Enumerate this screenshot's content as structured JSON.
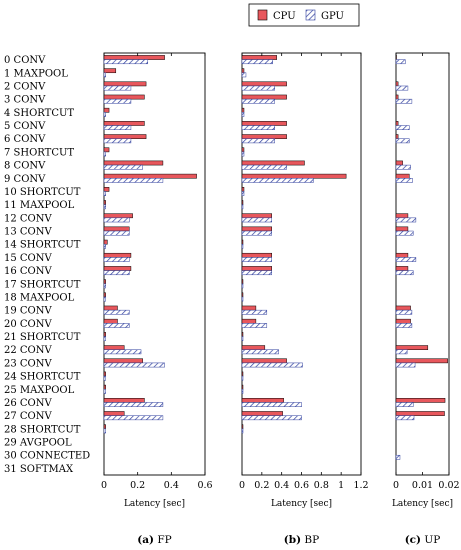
{
  "chart_data": [
    {
      "type": "bar",
      "panel_caption": "(a) FP",
      "caption_letter": "(a)",
      "caption_text": "FP",
      "xlabel": "Latency [sec]",
      "xlim": [
        0,
        0.6
      ],
      "xticks": [
        "0",
        "0.2",
        "0.4",
        "0.6"
      ],
      "xtick_values": [
        0,
        0.2,
        0.4,
        0.6
      ],
      "series": [
        {
          "name": "CPU",
          "values": [
            0.36,
            0.07,
            0.25,
            0.24,
            0.03,
            0.24,
            0.25,
            0.03,
            0.35,
            0.55,
            0.03,
            0.01,
            0.17,
            0.15,
            0.02,
            0.16,
            0.16,
            0.01,
            0.01,
            0.08,
            0.08,
            0.01,
            0.12,
            0.23,
            0.01,
            0.01,
            0.24,
            0.12,
            0.01,
            0.0,
            0.0,
            0.0
          ]
        },
        {
          "name": "GPU",
          "values": [
            0.26,
            0.01,
            0.16,
            0.16,
            0.01,
            0.16,
            0.16,
            0.01,
            0.23,
            0.35,
            0.01,
            0.01,
            0.15,
            0.15,
            0.01,
            0.15,
            0.15,
            0.01,
            0.01,
            0.15,
            0.15,
            0.01,
            0.22,
            0.36,
            0.01,
            0.01,
            0.35,
            0.35,
            0.01,
            0.0,
            0.0,
            0.0
          ]
        }
      ]
    },
    {
      "type": "bar",
      "panel_caption": "(b) BP",
      "caption_letter": "(b)",
      "caption_text": "BP",
      "xlabel": "Latency [sec]",
      "xlim": [
        0,
        1.2
      ],
      "xticks": [
        "0",
        "0.2",
        "0.4",
        "0.6",
        "0.8",
        "1",
        "1.2"
      ],
      "xtick_values": [
        0,
        0.2,
        0.4,
        0.6,
        0.8,
        1.0,
        1.2
      ],
      "series": [
        {
          "name": "CPU",
          "values": [
            0.35,
            0.02,
            0.45,
            0.45,
            0.02,
            0.45,
            0.45,
            0.02,
            0.63,
            1.05,
            0.02,
            0.01,
            0.3,
            0.3,
            0.01,
            0.3,
            0.3,
            0.01,
            0.01,
            0.14,
            0.14,
            0.01,
            0.23,
            0.45,
            0.01,
            0.01,
            0.42,
            0.41,
            0.01,
            0.0,
            0.0,
            0.0
          ]
        },
        {
          "name": "GPU",
          "values": [
            0.31,
            0.04,
            0.33,
            0.33,
            0.02,
            0.33,
            0.33,
            0.02,
            0.45,
            0.72,
            0.02,
            0.01,
            0.3,
            0.3,
            0.01,
            0.3,
            0.3,
            0.01,
            0.01,
            0.25,
            0.25,
            0.01,
            0.37,
            0.61,
            0.01,
            0.01,
            0.6,
            0.6,
            0.01,
            0.0,
            0.0,
            0.0
          ]
        }
      ]
    },
    {
      "type": "bar",
      "panel_caption": "(c) UP",
      "caption_letter": "(c)",
      "caption_text": "UP",
      "xlabel": "Latency [sec]",
      "xlim": [
        0,
        0.02
      ],
      "xticks": [
        "0",
        "0.01",
        "0.02"
      ],
      "xtick_values": [
        0,
        0.01,
        0.02
      ],
      "series": [
        {
          "name": "CPU",
          "values": [
            0.0002,
            0.0,
            0.0008,
            0.0008,
            0.0,
            0.0008,
            0.0008,
            0.0,
            0.0025,
            0.005,
            0.0,
            0.0,
            0.0045,
            0.0045,
            0.0,
            0.0045,
            0.0045,
            0.0,
            0.0,
            0.0055,
            0.0055,
            0.0,
            0.012,
            0.0195,
            0.0,
            0.0,
            0.0185,
            0.0183,
            0.0,
            0.0,
            0.0,
            0.0
          ]
        },
        {
          "name": "GPU",
          "values": [
            0.0035,
            0.0,
            0.0045,
            0.006,
            0.0,
            0.005,
            0.005,
            0.0,
            0.0055,
            0.0062,
            0.0,
            0.0,
            0.0075,
            0.0065,
            0.0,
            0.0075,
            0.0065,
            0.0,
            0.0,
            0.006,
            0.006,
            0.0,
            0.0042,
            0.0072,
            0.0,
            0.0,
            0.0065,
            0.0068,
            0.0,
            0.0,
            0.0015,
            0.0
          ]
        }
      ]
    }
  ],
  "layers": [
    "0 CONV",
    "1 MAXPOOL",
    "2 CONV",
    "3 CONV",
    "4 SHORTCUT",
    "5 CONV",
    "6 CONV",
    "7 SHORTCUT",
    "8 CONV",
    "9 CONV",
    "10 SHORTCUT",
    "11 MAXPOOL",
    "12 CONV",
    "13 CONV",
    "14 SHORTCUT",
    "15 CONV",
    "16 CONV",
    "17 SHORTCUT",
    "18 MAXPOOL",
    "19 CONV",
    "20 CONV",
    "21 SHORTCUT",
    "22 CONV",
    "23 CONV",
    "24 SHORTCUT",
    "25 MAXPOOL",
    "26 CONV",
    "27 CONV",
    "28 SHORTCUT",
    "29 AVGPOOL",
    "30 CONNECTED",
    "31 SOFTMAX"
  ],
  "legend": {
    "cpu": "CPU",
    "gpu": "GPU"
  },
  "colors": {
    "cpu": "#e8575c",
    "gpu": "#2f3f9e",
    "border": "#000000"
  }
}
